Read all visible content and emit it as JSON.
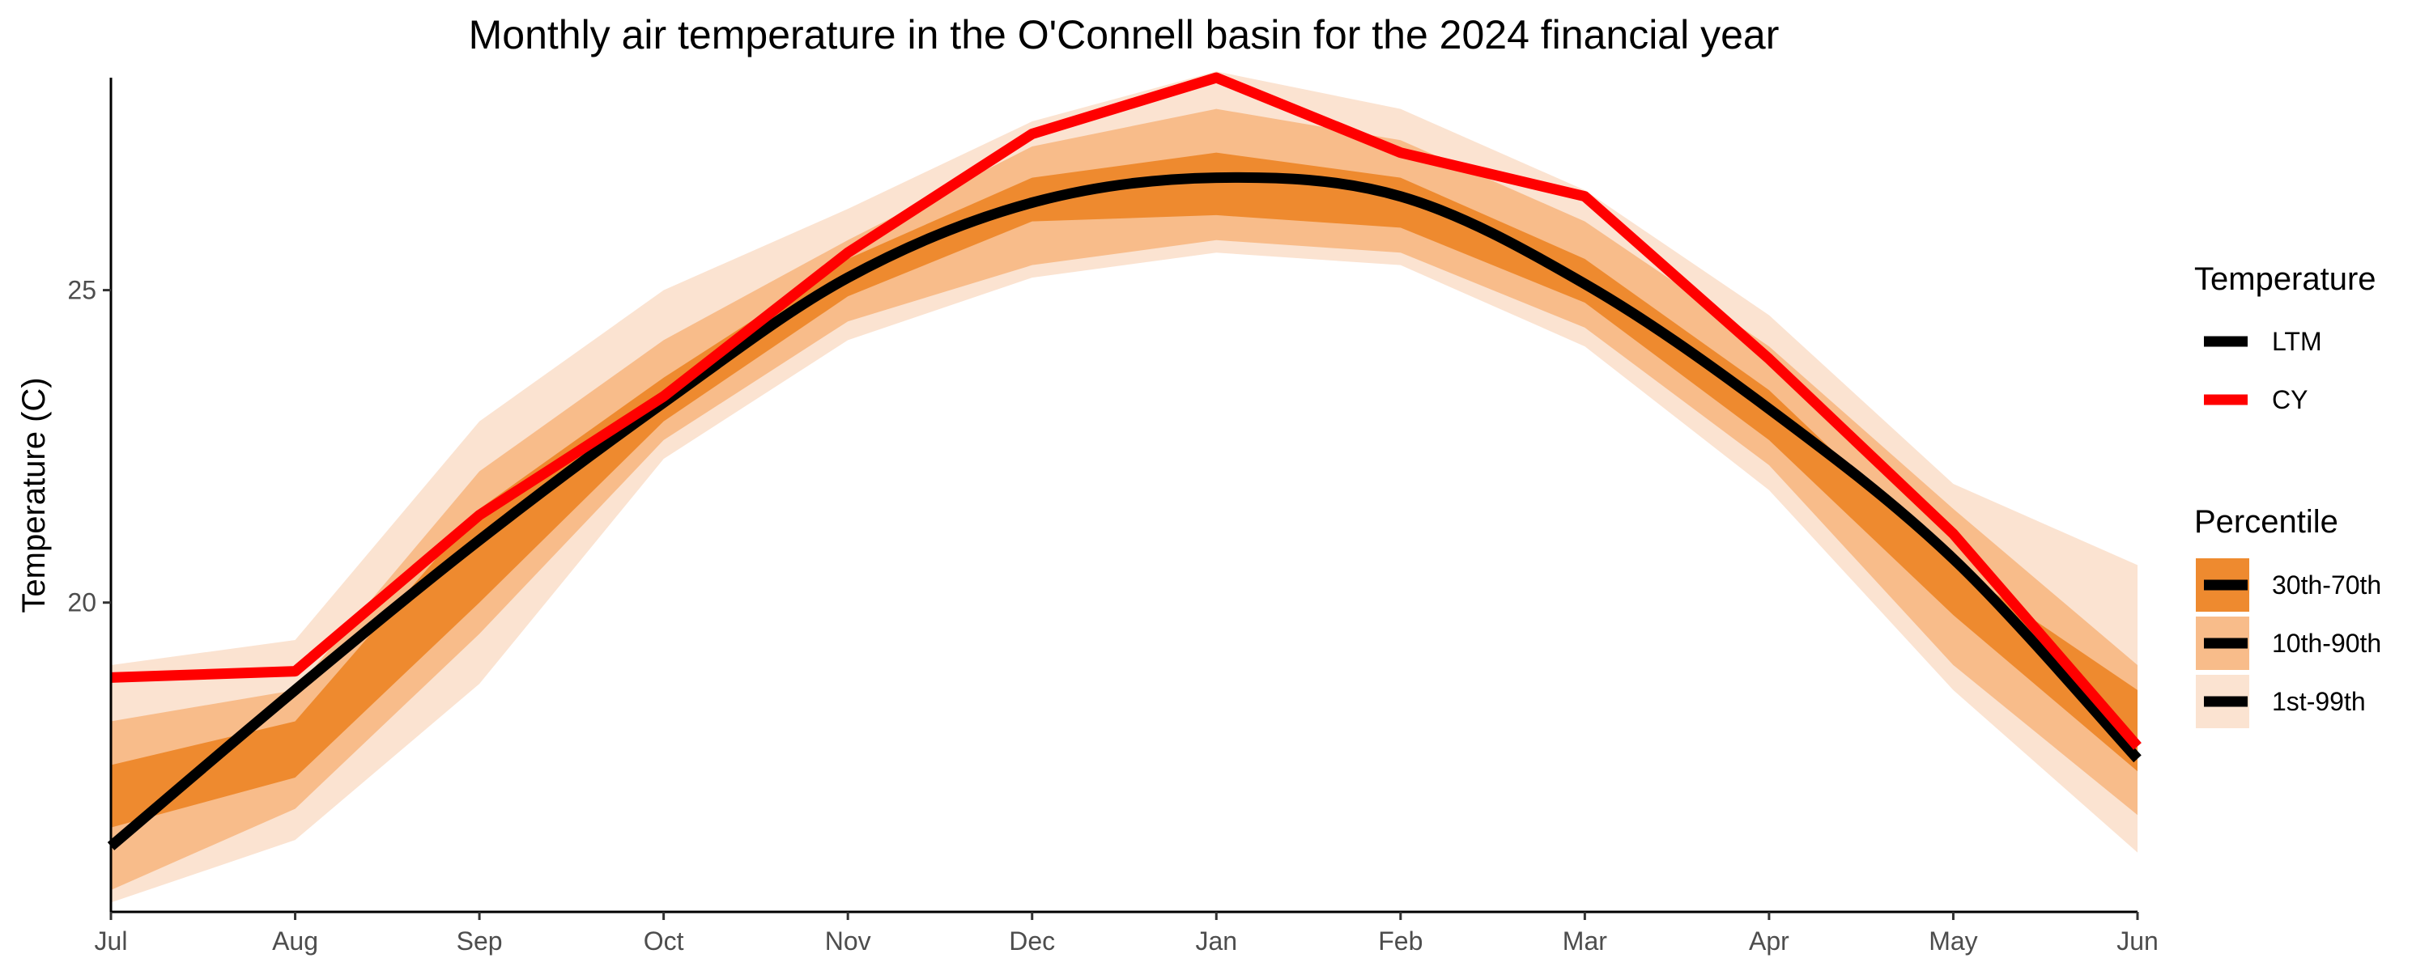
{
  "colors": {
    "ltm": "#000000",
    "cy": "#ff0000",
    "band_30_70": "#ee8a2f",
    "band_10_90": "#f8bc8a",
    "band_1_99": "#fbe3d1"
  },
  "chart_data": {
    "type": "line",
    "title": "Monthly air temperature in the O'Connell basin for the 2024 financial year",
    "xlabel": "",
    "ylabel": "Temperature (C)",
    "ylim": [
      15.05,
      28.4
    ],
    "ytick_values": [
      20,
      25
    ],
    "ytick_labels": [
      "20",
      "25"
    ],
    "categories": [
      "Jul",
      "Aug",
      "Sep",
      "Oct",
      "Nov",
      "Dec",
      "Jan",
      "Feb",
      "Mar",
      "Apr",
      "May",
      "Jun"
    ],
    "grid": false,
    "series": [
      {
        "name": "LTM",
        "values": [
          16.1,
          18.6,
          21.0,
          23.2,
          25.2,
          26.4,
          26.8,
          26.5,
          25.1,
          23.1,
          20.7,
          17.5
        ]
      },
      {
        "name": "CY",
        "values": [
          18.8,
          18.9,
          21.4,
          23.3,
          25.6,
          27.5,
          28.4,
          27.2,
          26.5,
          23.9,
          21.1,
          17.7
        ]
      }
    ],
    "bands": [
      {
        "name": "1st-99th",
        "lower": [
          15.2,
          16.2,
          18.7,
          22.3,
          24.2,
          25.2,
          25.6,
          25.4,
          24.1,
          21.8,
          18.6,
          16.0
        ],
        "upper": [
          19.0,
          19.4,
          22.9,
          25.0,
          26.3,
          27.7,
          28.5,
          27.9,
          26.6,
          24.6,
          21.9,
          20.6
        ]
      },
      {
        "name": "10th-90th",
        "lower": [
          15.4,
          16.7,
          19.5,
          22.6,
          24.5,
          25.4,
          25.8,
          25.6,
          24.4,
          22.2,
          19.0,
          16.6
        ],
        "upper": [
          18.1,
          18.6,
          22.1,
          24.2,
          25.8,
          27.3,
          27.9,
          27.4,
          26.1,
          24.1,
          21.5,
          19.0
        ]
      },
      {
        "name": "30th-70th",
        "lower": [
          16.4,
          17.2,
          20.0,
          22.9,
          24.9,
          26.1,
          26.2,
          26.0,
          24.8,
          22.6,
          19.8,
          17.3
        ],
        "upper": [
          17.4,
          18.1,
          21.5,
          23.6,
          25.5,
          26.8,
          27.2,
          26.8,
          25.5,
          23.4,
          20.6,
          18.6
        ]
      }
    ],
    "legend": {
      "position": "right",
      "temperature_title": "Temperature",
      "temperature_items": [
        "LTM",
        "CY"
      ],
      "percentile_title": "Percentile",
      "percentile_items": [
        "30th-70th",
        "10th-90th",
        "1st-99th"
      ]
    }
  }
}
